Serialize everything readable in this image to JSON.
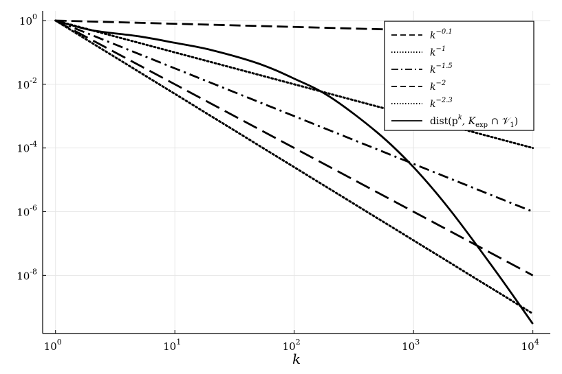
{
  "chart_data": {
    "type": "line",
    "xlabel": "k",
    "ylabel": "",
    "xscale": "log10",
    "yscale": "log10",
    "xlim": [
      0.78,
      14000
    ],
    "ylim": [
      1.5e-10,
      2
    ],
    "grid": true,
    "legend_position": "top-right",
    "x_ticks": [
      {
        "base": "10",
        "exp": "0",
        "value": 1
      },
      {
        "base": "10",
        "exp": "1",
        "value": 10
      },
      {
        "base": "10",
        "exp": "2",
        "value": 100
      },
      {
        "base": "10",
        "exp": "3",
        "value": 1000
      },
      {
        "base": "10",
        "exp": "4",
        "value": 10000
      }
    ],
    "y_ticks": [
      {
        "base": "10",
        "exp": "0",
        "value": 1
      },
      {
        "base": "10",
        "exp": "-2",
        "value": 0.01
      },
      {
        "base": "10",
        "exp": "-4",
        "value": 0.0001
      },
      {
        "base": "10",
        "exp": "-6",
        "value": 1e-06
      },
      {
        "base": "10",
        "exp": "-8",
        "value": 1e-08
      }
    ],
    "series": [
      {
        "name": "k^{-0.1}",
        "legend": {
          "base": "k",
          "sup": "−0.1",
          "rest": ""
        },
        "style": "dashed",
        "x": [
          1,
          10,
          100,
          1000,
          10000
        ],
        "y": [
          1,
          0.794,
          0.631,
          0.501,
          0.398
        ]
      },
      {
        "name": "k^{-1}",
        "legend": {
          "base": "k",
          "sup": "−1",
          "rest": ""
        },
        "style": "dotted",
        "x": [
          1,
          10,
          100,
          1000,
          10000
        ],
        "y": [
          1,
          0.1,
          0.01,
          0.001,
          0.0001
        ]
      },
      {
        "name": "k^{-1.5}",
        "legend": {
          "base": "k",
          "sup": "−1.5",
          "rest": ""
        },
        "style": "dashdot",
        "x": [
          1,
          10,
          100,
          1000,
          10000
        ],
        "y": [
          1,
          0.0316,
          0.001,
          3.16e-05,
          1e-06
        ]
      },
      {
        "name": "k^{-2}",
        "legend": {
          "base": "k",
          "sup": "−2",
          "rest": ""
        },
        "style": "longdash",
        "x": [
          1,
          10,
          100,
          1000,
          10000
        ],
        "y": [
          1,
          0.01,
          0.0001,
          1e-06,
          1e-08
        ]
      },
      {
        "name": "k^{-2.3}",
        "legend": {
          "base": "k",
          "sup": "−2.3",
          "rest": ""
        },
        "style": "dotted",
        "x": [
          1,
          10,
          100,
          1000,
          10000
        ],
        "y": [
          1,
          0.005,
          2.5e-05,
          1.26e-07,
          6.3e-10
        ]
      },
      {
        "name": "dist(p^k, K_exp ∩ V_1)",
        "legend": {
          "base": "dist(p",
          "sup": "k",
          "rest": ", K",
          "sub": "exp",
          "rest2": " ∩ 𝒱",
          "sub2": "1",
          "end": ")"
        },
        "style": "solid",
        "x": [
          1,
          2,
          5,
          10,
          20,
          50,
          100,
          200,
          500,
          1000,
          2000,
          5000,
          10000
        ],
        "y": [
          1,
          0.5,
          0.32,
          0.2,
          0.12,
          0.045,
          0.015,
          0.004,
          0.0003,
          2.5e-05,
          1.2e-06,
          1.2e-08,
          3e-10
        ]
      }
    ]
  }
}
